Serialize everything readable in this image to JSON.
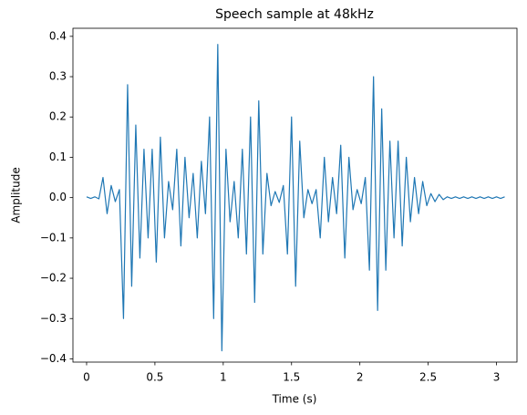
{
  "chart_data": {
    "type": "line",
    "title": "Speech sample at 48kHz",
    "xlabel": "Time (s)",
    "ylabel": "Amplitude",
    "x": [
      0,
      0.03,
      0.06,
      0.09,
      0.12,
      0.15,
      0.18,
      0.21,
      0.24,
      0.27,
      0.3,
      0.33,
      0.36,
      0.39,
      0.42,
      0.45,
      0.48,
      0.51,
      0.54,
      0.57,
      0.6,
      0.63,
      0.66,
      0.69,
      0.72,
      0.75,
      0.78,
      0.81,
      0.84,
      0.87,
      0.9,
      0.93,
      0.96,
      0.99,
      1.02,
      1.05,
      1.08,
      1.11,
      1.14,
      1.17,
      1.2,
      1.23,
      1.26,
      1.29,
      1.32,
      1.35,
      1.38,
      1.41,
      1.44,
      1.47,
      1.5,
      1.53,
      1.56,
      1.59,
      1.62,
      1.65,
      1.68,
      1.71,
      1.74,
      1.77,
      1.8,
      1.83,
      1.86,
      1.89,
      1.92,
      1.95,
      1.98,
      2.01,
      2.04,
      2.07,
      2.1,
      2.13,
      2.16,
      2.19,
      2.22,
      2.25,
      2.28,
      2.31,
      2.34,
      2.37,
      2.4,
      2.43,
      2.46,
      2.49,
      2.52,
      2.55,
      2.58,
      2.61,
      2.64,
      2.67,
      2.7,
      2.73,
      2.76,
      2.79,
      2.82,
      2.85,
      2.88,
      2.91,
      2.94,
      2.97,
      3.0,
      3.03,
      3.06
    ],
    "series": [
      {
        "color": "#1f77b4",
        "values": [
          0.002,
          -0.002,
          0.002,
          -0.003,
          0.05,
          -0.04,
          0.03,
          -0.01,
          0.02,
          -0.3,
          0.28,
          -0.22,
          0.18,
          -0.15,
          0.12,
          -0.1,
          0.12,
          -0.16,
          0.15,
          -0.1,
          0.04,
          -0.03,
          0.12,
          -0.12,
          0.1,
          -0.05,
          0.06,
          -0.1,
          0.09,
          -0.04,
          0.2,
          -0.3,
          0.38,
          -0.38,
          0.12,
          -0.06,
          0.04,
          -0.1,
          0.12,
          -0.14,
          0.2,
          -0.26,
          0.24,
          -0.14,
          0.06,
          -0.02,
          0.015,
          -0.012,
          0.03,
          -0.14,
          0.2,
          -0.22,
          0.14,
          -0.05,
          0.02,
          -0.015,
          0.02,
          -0.1,
          0.1,
          -0.06,
          0.05,
          -0.04,
          0.13,
          -0.15,
          0.1,
          -0.03,
          0.02,
          -0.015,
          0.05,
          -0.18,
          0.3,
          -0.28,
          0.22,
          -0.18,
          0.14,
          -0.1,
          0.14,
          -0.12,
          0.1,
          -0.06,
          0.05,
          -0.04,
          0.04,
          -0.02,
          0.01,
          -0.01,
          0.008,
          -0.005,
          0.002,
          -0.002,
          0.002,
          -0.002,
          0.002,
          -0.002,
          0.002,
          -0.002,
          0.002,
          -0.002,
          0.002,
          -0.002,
          0.002,
          -0.002,
          0.002
        ]
      }
    ],
    "xlim": [
      -0.1,
      3.15
    ],
    "xticks": [
      0,
      0.5,
      1,
      1.5,
      2,
      2.5,
      3
    ],
    "ylim": [
      -0.408,
      0.42
    ],
    "yticks": [
      {
        "value": -0.4,
        "label": "−0.4"
      },
      {
        "value": -0.3,
        "label": "−0.3"
      },
      {
        "value": -0.2,
        "label": "−0.2"
      },
      {
        "value": -0.1,
        "label": "−0.1"
      },
      {
        "value": 0,
        "label": "0.0"
      },
      0.1,
      0.2,
      0.3,
      0.4
    ]
  }
}
